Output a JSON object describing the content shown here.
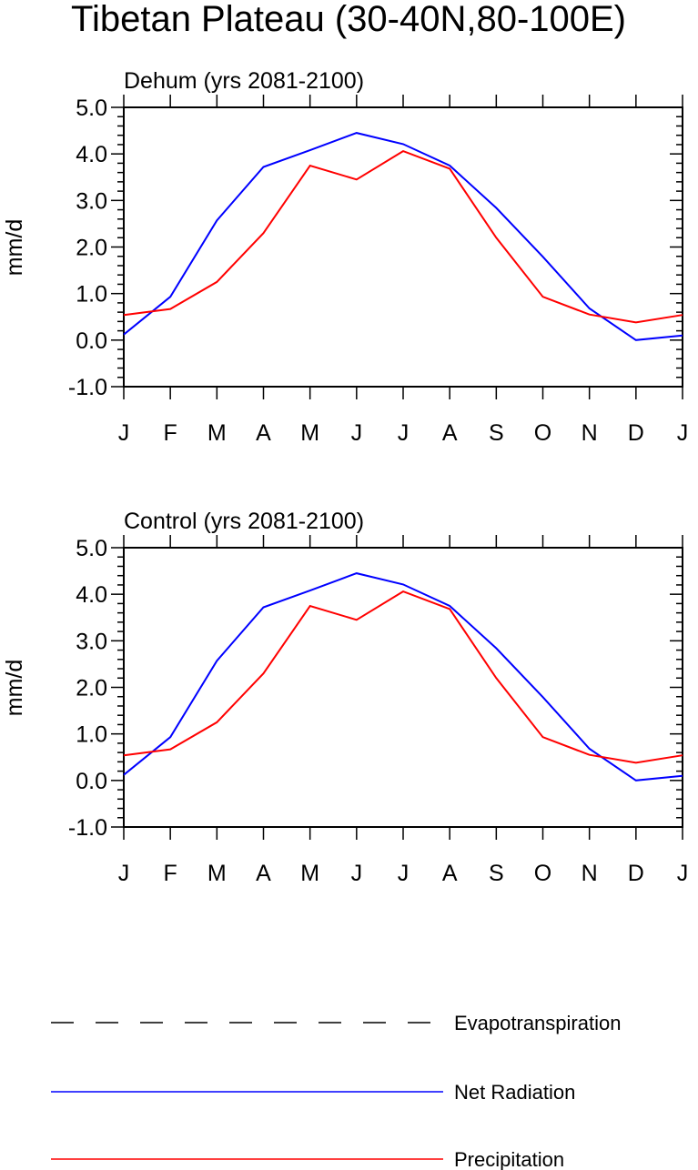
{
  "figure": {
    "title": "Tibetan Plateau (30-40N,80-100E)",
    "legend": [
      {
        "label": "Evapotranspiration",
        "color": "#000000",
        "style": "dashed"
      },
      {
        "label": "Net Radiation",
        "color": "#0000ff",
        "style": "solid"
      },
      {
        "label": "Precipitation",
        "color": "#ff0000",
        "style": "solid"
      }
    ]
  },
  "chart_data": [
    {
      "type": "line",
      "title": "Dehum (yrs 2081-2100)",
      "xlabel": "",
      "ylabel": "mm/d",
      "categories": [
        "J",
        "F",
        "M",
        "A",
        "M",
        "J",
        "J",
        "A",
        "S",
        "O",
        "N",
        "D",
        "J"
      ],
      "ylim": [
        -1.0,
        5.0
      ],
      "yticks": [
        "5.0",
        "4.0",
        "3.0",
        "2.0",
        "1.0",
        "0.0",
        "-1.0"
      ],
      "grid": false,
      "series": [
        {
          "name": "Net Radiation",
          "color": "#0000ff",
          "values": [
            0.12,
            0.93,
            2.57,
            3.72,
            4.08,
            4.45,
            4.21,
            3.75,
            2.84,
            1.79,
            0.68,
            0.0,
            0.1
          ]
        },
        {
          "name": "Precipitation",
          "color": "#ff0000",
          "values": [
            0.54,
            0.67,
            1.25,
            2.3,
            3.75,
            3.45,
            4.06,
            3.68,
            2.2,
            0.93,
            0.55,
            0.38,
            0.54
          ]
        }
      ]
    },
    {
      "type": "line",
      "title": "Control (yrs 2081-2100)",
      "xlabel": "",
      "ylabel": "mm/d",
      "categories": [
        "J",
        "F",
        "M",
        "A",
        "M",
        "J",
        "J",
        "A",
        "S",
        "O",
        "N",
        "D",
        "J"
      ],
      "ylim": [
        -1.0,
        5.0
      ],
      "yticks": [
        "5.0",
        "4.0",
        "3.0",
        "2.0",
        "1.0",
        "0.0",
        "-1.0"
      ],
      "grid": false,
      "series": [
        {
          "name": "Net Radiation",
          "color": "#0000ff",
          "values": [
            0.12,
            0.93,
            2.57,
            3.72,
            4.08,
            4.45,
            4.21,
            3.75,
            2.84,
            1.79,
            0.68,
            0.0,
            0.1
          ]
        },
        {
          "name": "Precipitation",
          "color": "#ff0000",
          "values": [
            0.54,
            0.67,
            1.25,
            2.3,
            3.75,
            3.45,
            4.06,
            3.68,
            2.2,
            0.93,
            0.55,
            0.38,
            0.54
          ]
        }
      ]
    }
  ]
}
